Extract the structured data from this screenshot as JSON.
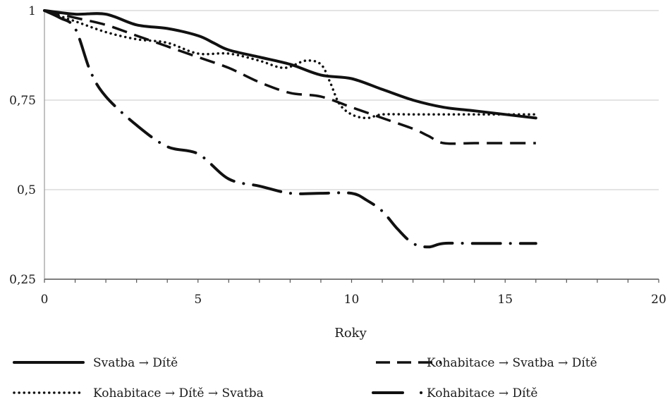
{
  "chart_data": {
    "type": "line",
    "xlabel": "Roky",
    "ylabel": "",
    "xlim": [
      0,
      20
    ],
    "ylim": [
      0.25,
      1
    ],
    "x_ticks": [
      0,
      5,
      10,
      15,
      20
    ],
    "y_ticks": [
      0.25,
      0.5,
      0.75,
      1
    ],
    "x_tick_labels": [
      "0",
      "5",
      "10",
      "15",
      "20"
    ],
    "y_tick_labels": [
      "0,25",
      "0,5",
      "0,75",
      "1"
    ],
    "grid": "horizontal",
    "legend_position": "bottom",
    "series": [
      {
        "name": "Svatba → Dítě",
        "style": "solid",
        "x": [
          0,
          1,
          2,
          3,
          4,
          5,
          5.5,
          6,
          7,
          8,
          9,
          10,
          11,
          12,
          13,
          14,
          15,
          16
        ],
        "y": [
          1,
          0.99,
          0.99,
          0.96,
          0.95,
          0.93,
          0.91,
          0.89,
          0.87,
          0.85,
          0.82,
          0.81,
          0.78,
          0.75,
          0.73,
          0.72,
          0.71,
          0.7
        ]
      },
      {
        "name": "Kohabitace → Svatba → Dítě",
        "style": "dashed",
        "x": [
          0,
          1,
          2,
          3,
          4,
          5,
          6,
          7,
          8,
          9,
          10,
          11,
          12,
          12.5,
          13,
          14,
          15,
          16
        ],
        "y": [
          1,
          0.98,
          0.96,
          0.93,
          0.9,
          0.87,
          0.84,
          0.8,
          0.77,
          0.76,
          0.73,
          0.7,
          0.67,
          0.65,
          0.63,
          0.63,
          0.63,
          0.63
        ]
      },
      {
        "name": "Kohabitace → Dítě → Svatba",
        "style": "dotted",
        "x": [
          0,
          1,
          2,
          3,
          4,
          5,
          6,
          7,
          7.8,
          8.5,
          9,
          9.3,
          9.6,
          10,
          10.5,
          11,
          12,
          13,
          14,
          15,
          16
        ],
        "y": [
          1,
          0.97,
          0.94,
          0.92,
          0.91,
          0.88,
          0.88,
          0.86,
          0.84,
          0.86,
          0.85,
          0.8,
          0.74,
          0.71,
          0.7,
          0.71,
          0.71,
          0.71,
          0.71,
          0.71,
          0.71
        ]
      },
      {
        "name": "Kohabitace → Dítě",
        "style": "dash-dot",
        "x": [
          0,
          0.5,
          1,
          1.5,
          2,
          3,
          4,
          5,
          6,
          7,
          8,
          9,
          10,
          10.5,
          11,
          11.5,
          12,
          12.5,
          13,
          14,
          15,
          16
        ],
        "y": [
          1,
          0.98,
          0.95,
          0.83,
          0.76,
          0.68,
          0.62,
          0.6,
          0.53,
          0.51,
          0.49,
          0.49,
          0.49,
          0.47,
          0.44,
          0.39,
          0.35,
          0.34,
          0.35,
          0.35,
          0.35,
          0.35
        ]
      }
    ]
  }
}
